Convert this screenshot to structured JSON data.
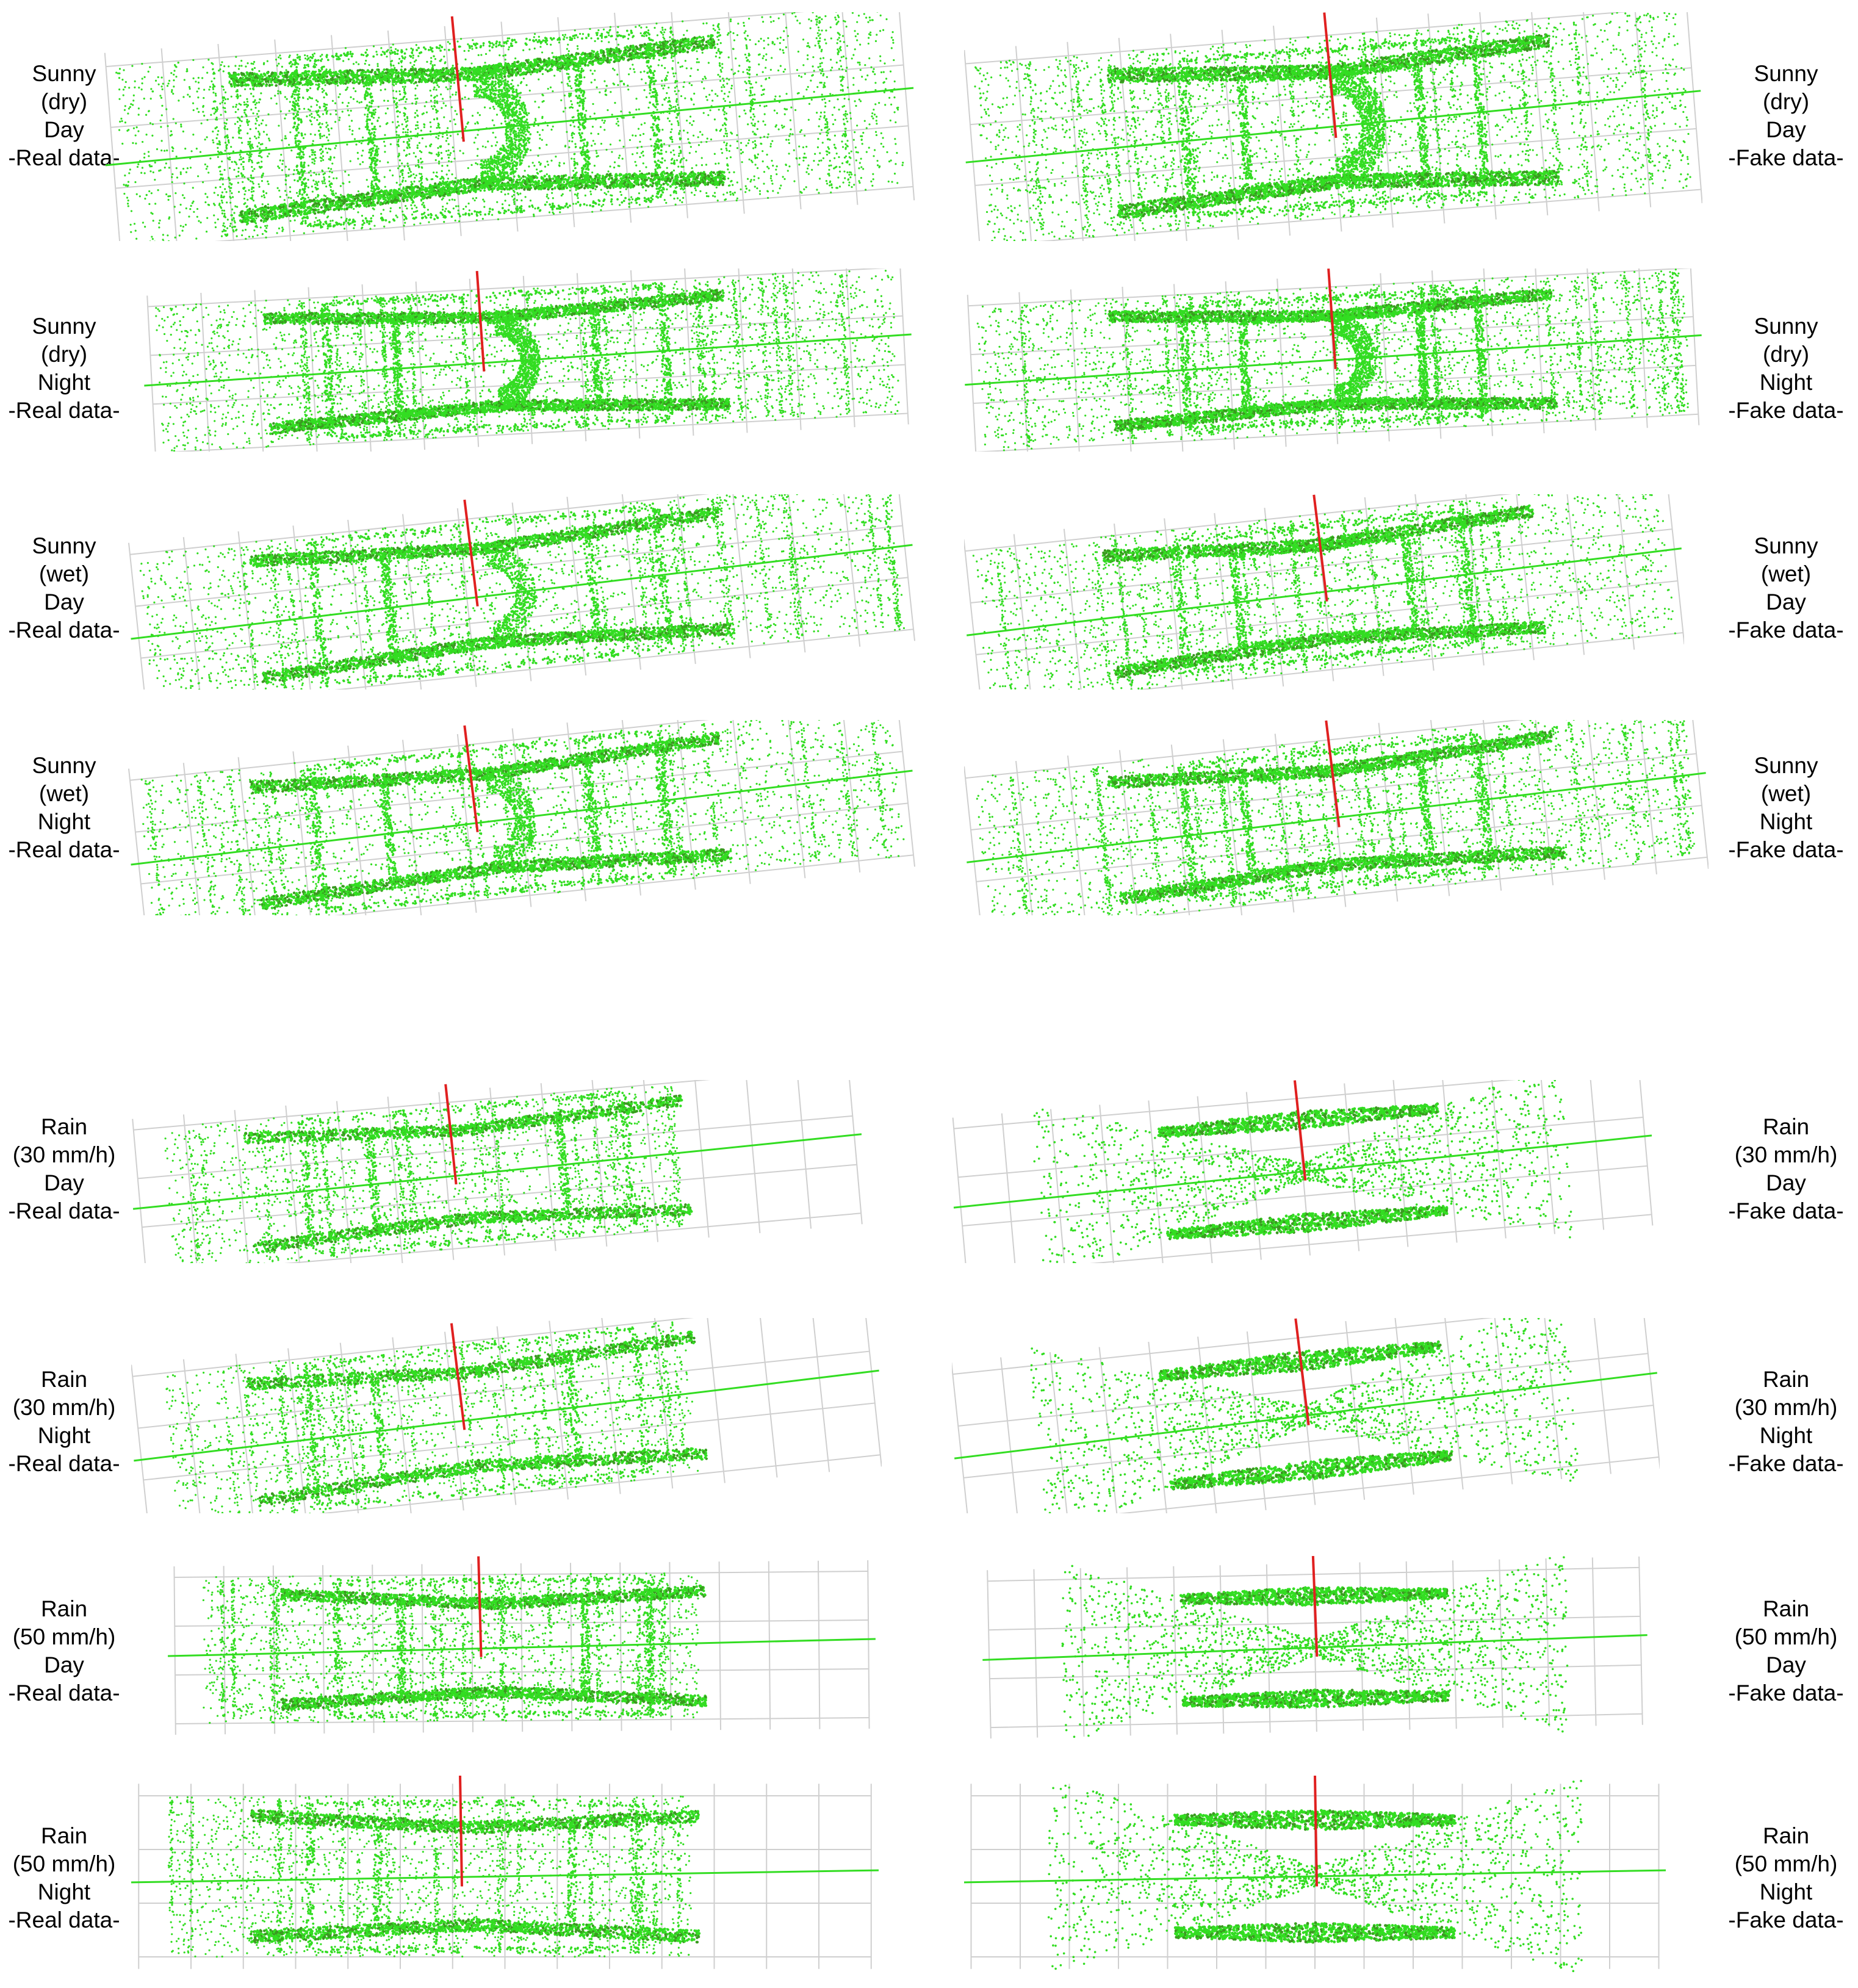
{
  "colors": {
    "points": "#33dd22",
    "dense": "#3a9a20",
    "axis_z": "#e02020",
    "grid": "#cfcfcf",
    "axis": "#999999"
  },
  "rows": [
    {
      "left": [
        "Sunny",
        "(dry)",
        "Day",
        "-Real data-"
      ],
      "right": [
        "Sunny",
        "(dry)",
        "Day",
        "-Fake data-"
      ]
    },
    {
      "left": [
        "Sunny",
        "(dry)",
        "Night",
        "-Real data-"
      ],
      "right": [
        "Sunny",
        "(dry)",
        "Night",
        "-Fake data-"
      ]
    },
    {
      "left": [
        "Sunny",
        "(wet)",
        "Day",
        "-Real data-"
      ],
      "right": [
        "Sunny",
        "(wet)",
        "Day",
        "-Fake data-"
      ]
    },
    {
      "left": [
        "Sunny",
        "(wet)",
        "Night",
        "-Real data-"
      ],
      "right": [
        "Sunny",
        "(wet)",
        "Night",
        "-Fake data-"
      ]
    },
    {
      "left": [
        "Rain",
        "(30 mm/h)",
        "Day",
        "-Real data-"
      ],
      "right": [
        "Rain",
        "(30 mm/h)",
        "Day",
        "-Fake data-"
      ]
    },
    {
      "left": [
        "Rain",
        "(30 mm/h)",
        "Night",
        "-Real data-"
      ],
      "right": [
        "Rain",
        "(30 mm/h)",
        "Night",
        "-Fake data-"
      ]
    },
    {
      "left": [
        "Rain",
        "(50 mm/h)",
        "Day",
        "-Real data-"
      ],
      "right": [
        "Rain",
        "(50 mm/h)",
        "Day",
        "-Fake data-"
      ]
    },
    {
      "left": [
        "Rain",
        "(50 mm/h)",
        "Night",
        "-Real data-"
      ],
      "right": [
        "Rain",
        "(50 mm/h)",
        "Night",
        "-Fake data-"
      ]
    }
  ]
}
